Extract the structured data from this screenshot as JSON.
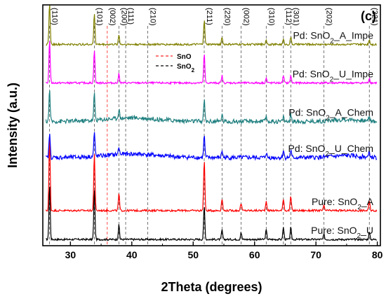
{
  "chart_data": {
    "type": "line",
    "panel_label": "(c)",
    "xlabel": "2Theta (degrees)",
    "ylabel": "Intensity (a.u.)",
    "xlim": [
      25.5,
      80.5
    ],
    "x_ticks": [
      30,
      40,
      50,
      60,
      70,
      80
    ],
    "x_tick_labels": [
      "30",
      "40",
      "50",
      "60",
      "70",
      "80"
    ],
    "legend": [
      {
        "label": "SnO",
        "color": "#ff2020",
        "dash": "dashed"
      },
      {
        "label": "SnO2",
        "label_main": "SnO",
        "label_sub": "2",
        "color": "#000000",
        "dash": "dashed"
      }
    ],
    "reference_lines": [
      {
        "hkl": "(110)",
        "x": 26.6,
        "phase": "SnO2"
      },
      {
        "hkl": "(101)",
        "x": 33.9,
        "phase": "SnO2"
      },
      {
        "hkl": "(002)",
        "x": 36.0,
        "phase": "SnO"
      },
      {
        "hkl": "(200)",
        "x": 37.9,
        "phase": "SnO2"
      },
      {
        "hkl": "(111)",
        "x": 39.0,
        "phase": "SnO2"
      },
      {
        "hkl": "(210)",
        "x": 42.6,
        "phase": "SnO2"
      },
      {
        "hkl": "(211)",
        "x": 51.8,
        "phase": "SnO2"
      },
      {
        "hkl": "(220)",
        "x": 54.7,
        "phase": "SnO2"
      },
      {
        "hkl": "(002)",
        "x": 57.8,
        "phase": "SnO2"
      },
      {
        "hkl": "(310)",
        "x": 61.9,
        "phase": "SnO2"
      },
      {
        "hkl": "(112)",
        "x": 64.7,
        "phase": "SnO2"
      },
      {
        "hkl": "(301)",
        "x": 65.9,
        "phase": "SnO2"
      },
      {
        "hkl": "(202)",
        "x": 71.3,
        "phase": "SnO2"
      },
      {
        "hkl": "(321)",
        "x": 78.7,
        "phase": "SnO2"
      }
    ],
    "series": [
      {
        "name": "Pure: SnO2_U",
        "label_pre": "Pure: SnO",
        "label_sub": "2",
        "label_post": "_U",
        "color": "#000000",
        "baseline": 0.02,
        "peaks": [
          [
            26.6,
            0.23
          ],
          [
            33.9,
            0.21
          ],
          [
            37.9,
            0.06
          ],
          [
            51.8,
            0.14
          ],
          [
            54.7,
            0.04
          ],
          [
            57.8,
            0.03
          ],
          [
            61.9,
            0.04
          ],
          [
            64.7,
            0.05
          ],
          [
            65.9,
            0.05
          ],
          [
            71.3,
            0.02
          ],
          [
            78.7,
            0.03
          ]
        ]
      },
      {
        "name": "Pure: SnO2_A",
        "label_pre": "Pure: SnO",
        "label_sub": "2",
        "label_post": "_A",
        "color": "#ff0000",
        "baseline": 0.14,
        "peaks": [
          [
            26.6,
            0.31
          ],
          [
            33.9,
            0.24
          ],
          [
            37.9,
            0.07
          ],
          [
            51.8,
            0.21
          ],
          [
            54.7,
            0.05
          ],
          [
            57.8,
            0.03
          ],
          [
            61.9,
            0.04
          ],
          [
            64.7,
            0.05
          ],
          [
            65.9,
            0.06
          ],
          [
            71.3,
            0.02
          ],
          [
            78.7,
            0.04
          ]
        ]
      },
      {
        "name": "Pd: SnO2_U_Chem",
        "label_pre": "Pd: SnO",
        "label_sub": "2",
        "label_post": "_U_Chem",
        "color": "#0000ff",
        "baseline": 0.36,
        "peaks": [
          [
            26.6,
            0.1
          ],
          [
            33.9,
            0.1
          ],
          [
            37.9,
            0.03
          ],
          [
            51.8,
            0.09
          ],
          [
            54.7,
            0.03
          ],
          [
            61.9,
            0.02
          ],
          [
            64.7,
            0.03
          ],
          [
            65.9,
            0.03
          ],
          [
            78.7,
            0.02
          ]
        ]
      },
      {
        "name": "Pd: SnO2_A_Chem",
        "label_pre": "Pd: SnO",
        "label_sub": "2",
        "label_post": "_A_Chem",
        "color": "#1f7f7f",
        "baseline": 0.51,
        "peaks": [
          [
            26.6,
            0.13
          ],
          [
            33.9,
            0.11
          ],
          [
            37.9,
            0.04
          ],
          [
            51.8,
            0.09
          ],
          [
            54.7,
            0.03
          ],
          [
            61.9,
            0.02
          ],
          [
            64.7,
            0.02
          ],
          [
            65.9,
            0.03
          ],
          [
            78.7,
            0.02
          ]
        ]
      },
      {
        "name": "Pd: SnO2_U_Impe",
        "label_pre": "Pd: SnO",
        "label_sub": "2",
        "label_post": "_U_Impe",
        "color": "#ff00ff",
        "baseline": 0.67,
        "peaks": [
          [
            26.6,
            0.18
          ],
          [
            33.9,
            0.14
          ],
          [
            37.9,
            0.04
          ],
          [
            51.8,
            0.12
          ],
          [
            54.7,
            0.03
          ],
          [
            61.9,
            0.02
          ],
          [
            64.7,
            0.03
          ],
          [
            65.9,
            0.03
          ],
          [
            78.7,
            0.02
          ]
        ]
      },
      {
        "name": "Pd: SnO2_A_Impe",
        "label_pre": "Pd: SnO",
        "label_sub": "2",
        "label_post": "_A_Impe",
        "color": "#808000",
        "baseline": 0.83,
        "peaks": [
          [
            26.6,
            0.17
          ],
          [
            33.9,
            0.13
          ],
          [
            37.9,
            0.04
          ],
          [
            51.8,
            0.1
          ],
          [
            54.7,
            0.03
          ],
          [
            61.9,
            0.02
          ],
          [
            64.7,
            0.02
          ],
          [
            65.9,
            0.03
          ],
          [
            78.7,
            0.02
          ]
        ]
      }
    ]
  }
}
